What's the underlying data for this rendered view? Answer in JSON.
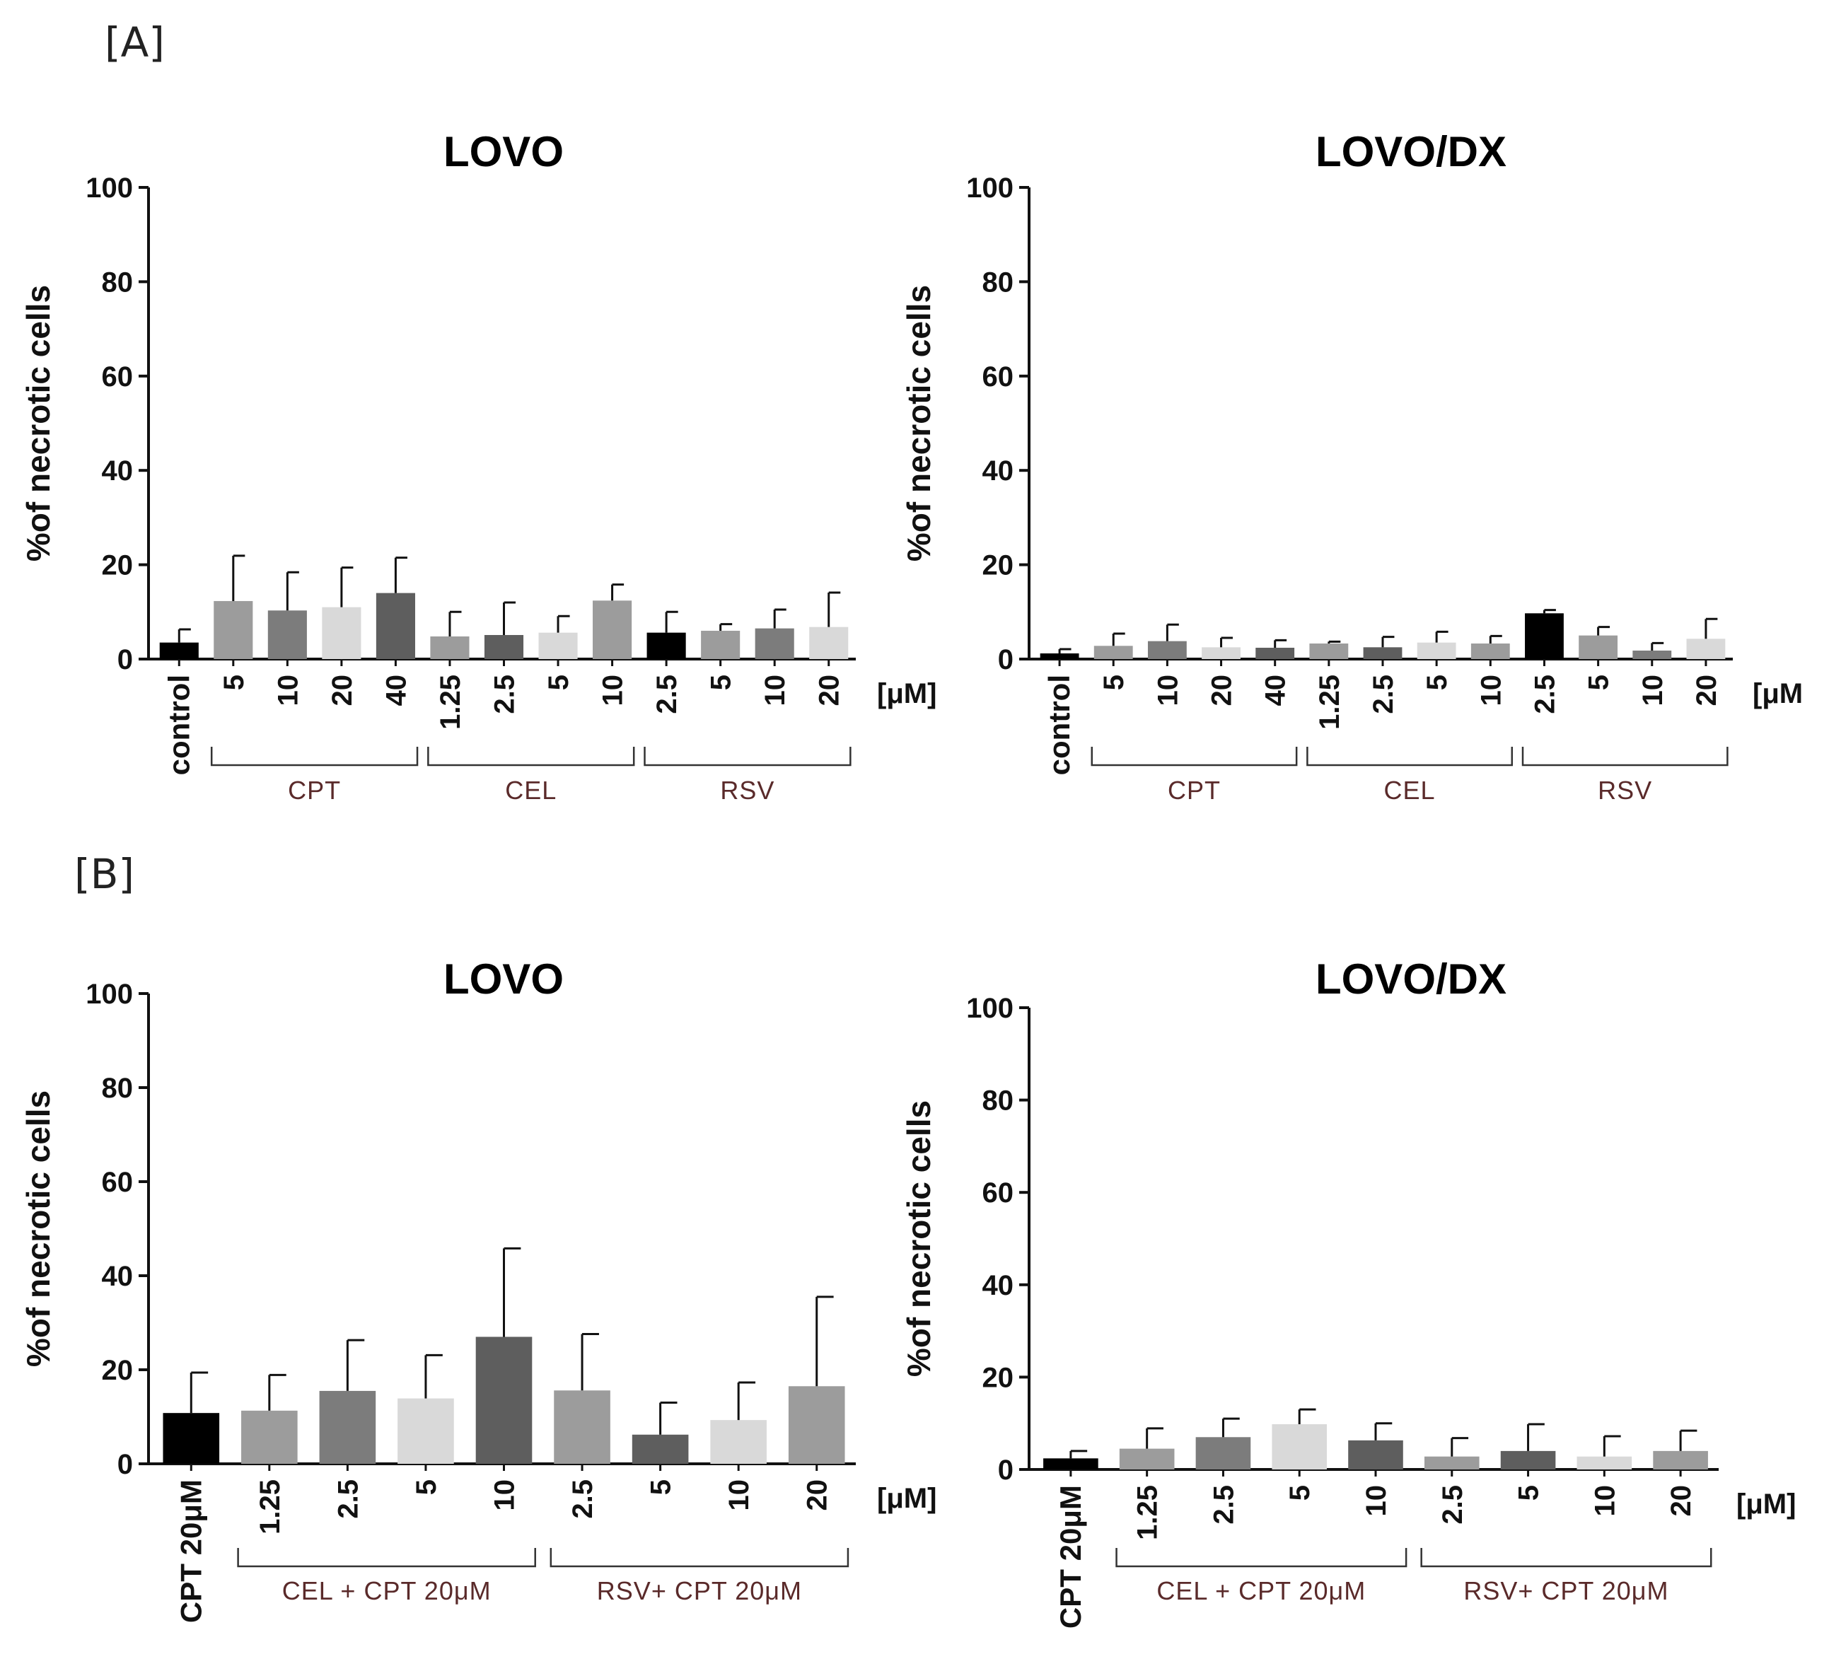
{
  "panels": [
    {
      "label": "[A]"
    },
    {
      "label": "[B]"
    }
  ],
  "bar_colors": [
    "#000000",
    "#9c9c9c",
    "#7c7c7c",
    "#d9d9d9",
    "#5e5e5e"
  ],
  "chart_data": [
    {
      "type": "bar",
      "title": "LOVO",
      "ylabel": "%of necrotic cells",
      "ylim": [
        0,
        100
      ],
      "yticks": [
        0,
        20,
        40,
        60,
        80,
        100
      ],
      "unit_label": "[μM]",
      "categories": [
        "control",
        "5",
        "10",
        "20",
        "40",
        "1.25",
        "2.5",
        "5",
        "10",
        "2.5",
        "5",
        "10",
        "20"
      ],
      "values": [
        3.5,
        12.3,
        10.3,
        11.0,
        14.0,
        4.8,
        5.1,
        5.6,
        12.4,
        5.6,
        6.0,
        6.5,
        6.8
      ],
      "errors": [
        2.8,
        9.6,
        8.1,
        8.4,
        7.5,
        5.2,
        6.9,
        3.5,
        3.4,
        4.4,
        1.4,
        4.0,
        7.3
      ],
      "bar_color_index": [
        0,
        1,
        2,
        3,
        4,
        1,
        4,
        3,
        1,
        0,
        1,
        2,
        3
      ],
      "groups": [
        {
          "label": "CPT",
          "first": 1,
          "last": 4
        },
        {
          "label": "CEL",
          "first": 5,
          "last": 8
        },
        {
          "label": "RSV",
          "first": 9,
          "last": 12
        }
      ]
    },
    {
      "type": "bar",
      "title": "LOVO/DX",
      "ylabel": "%of necrotic cells",
      "ylim": [
        0,
        100
      ],
      "yticks": [
        0,
        20,
        40,
        60,
        80,
        100
      ],
      "unit_label": "[μM",
      "categories": [
        "control",
        "5",
        "10",
        "20",
        "40",
        "1.25",
        "2.5",
        "5",
        "10",
        "2.5",
        "5",
        "10",
        "20"
      ],
      "values": [
        1.2,
        2.8,
        3.8,
        2.5,
        2.4,
        3.3,
        2.5,
        3.5,
        3.3,
        9.7,
        5.0,
        1.8,
        4.3
      ],
      "errors": [
        0.9,
        2.6,
        3.5,
        2.0,
        1.6,
        0.4,
        2.2,
        2.3,
        1.6,
        0.7,
        1.8,
        1.6,
        4.2
      ],
      "bar_color_index": [
        0,
        1,
        2,
        3,
        4,
        1,
        4,
        3,
        1,
        0,
        1,
        2,
        3
      ],
      "groups": [
        {
          "label": "CPT",
          "first": 1,
          "last": 4
        },
        {
          "label": "CEL",
          "first": 5,
          "last": 8
        },
        {
          "label": "RSV",
          "first": 9,
          "last": 12
        }
      ]
    },
    {
      "type": "bar",
      "title": "LOVO",
      "ylabel": "%of necrotic cells",
      "ylim": [
        0,
        100
      ],
      "yticks": [
        0,
        20,
        40,
        60,
        80,
        100
      ],
      "unit_label": "[μM]",
      "categories": [
        "CPT 20μM",
        "1.25",
        "2.5",
        "5",
        "10",
        "2.5",
        "5",
        "10",
        "20"
      ],
      "values": [
        10.8,
        11.3,
        15.5,
        13.9,
        27.0,
        15.6,
        6.2,
        9.3,
        16.5
      ],
      "errors": [
        8.6,
        7.6,
        10.8,
        9.2,
        18.8,
        12.0,
        6.8,
        8.0,
        19.0
      ],
      "bar_color_index": [
        0,
        1,
        2,
        3,
        4,
        1,
        4,
        3,
        1
      ],
      "groups": [
        {
          "label": "CEL + CPT 20μM",
          "first": 1,
          "last": 4
        },
        {
          "label": "RSV+ CPT 20μM",
          "first": 5,
          "last": 8
        }
      ]
    },
    {
      "type": "bar",
      "title": "LOVO/DX",
      "ylabel": "%of necrotic cells",
      "ylim": [
        0,
        100
      ],
      "yticks": [
        0,
        20,
        40,
        60,
        80,
        100
      ],
      "unit_label": "[μM]",
      "categories": [
        "CPT 20μM",
        "1.25",
        "2.5",
        "5",
        "10",
        "2.5",
        "5",
        "10",
        "20"
      ],
      "values": [
        2.4,
        4.5,
        7.0,
        9.8,
        6.3,
        2.8,
        4.0,
        2.8,
        4.0
      ],
      "errors": [
        1.6,
        4.4,
        4.0,
        3.2,
        3.7,
        4.0,
        5.8,
        4.4,
        4.4
      ],
      "bar_color_index": [
        0,
        1,
        2,
        3,
        4,
        1,
        4,
        3,
        1
      ],
      "groups": [
        {
          "label": "CEL + CPT 20μM",
          "first": 1,
          "last": 4
        },
        {
          "label": "RSV+ CPT 20μM",
          "first": 5,
          "last": 8
        }
      ]
    }
  ]
}
